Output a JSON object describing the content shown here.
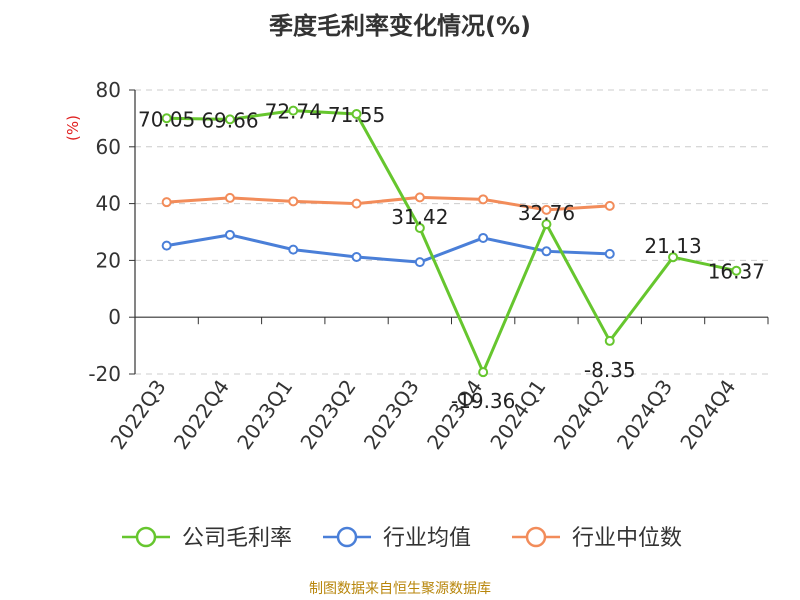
{
  "title": "季度毛利率变化情况(%)",
  "source": "制图数据来自恒生聚源数据库",
  "colors": {
    "company": "#66c62e",
    "industry_avg": "#4a7fd8",
    "industry_median": "#f28c5a",
    "ylabel": "#e02020",
    "source": "#b8860b"
  },
  "chart_data": {
    "type": "line",
    "title": "季度毛利率变化情况(%)",
    "ylabel": "(%)",
    "xlabel": "",
    "ylim": [
      -20,
      80
    ],
    "yticks": [
      -20,
      0,
      20,
      40,
      60,
      80
    ],
    "grid": true,
    "legend_position": "bottom",
    "categories": [
      "2022Q3",
      "2022Q4",
      "2023Q1",
      "2023Q2",
      "2023Q3",
      "2023Q4",
      "2024Q1",
      "2024Q2",
      "2024Q3",
      "2024Q4"
    ],
    "series": [
      {
        "name": "公司毛利率",
        "values": [
          70.05,
          69.66,
          72.74,
          71.55,
          31.42,
          -19.36,
          32.76,
          -8.35,
          21.13,
          16.37
        ],
        "labels": [
          "70.05",
          "69.66",
          "72.74",
          "71.55",
          "31.42",
          "-19.36",
          "32.76",
          "-8.35",
          "21.13",
          "16.37"
        ]
      },
      {
        "name": "行业均值",
        "values": [
          25.2,
          29.0,
          23.8,
          21.2,
          19.4,
          27.9,
          23.2,
          22.3,
          null,
          null
        ]
      },
      {
        "name": "行业中位数",
        "values": [
          40.5,
          42.0,
          40.8,
          40.0,
          42.2,
          41.5,
          37.8,
          39.2,
          null,
          null
        ]
      }
    ]
  }
}
